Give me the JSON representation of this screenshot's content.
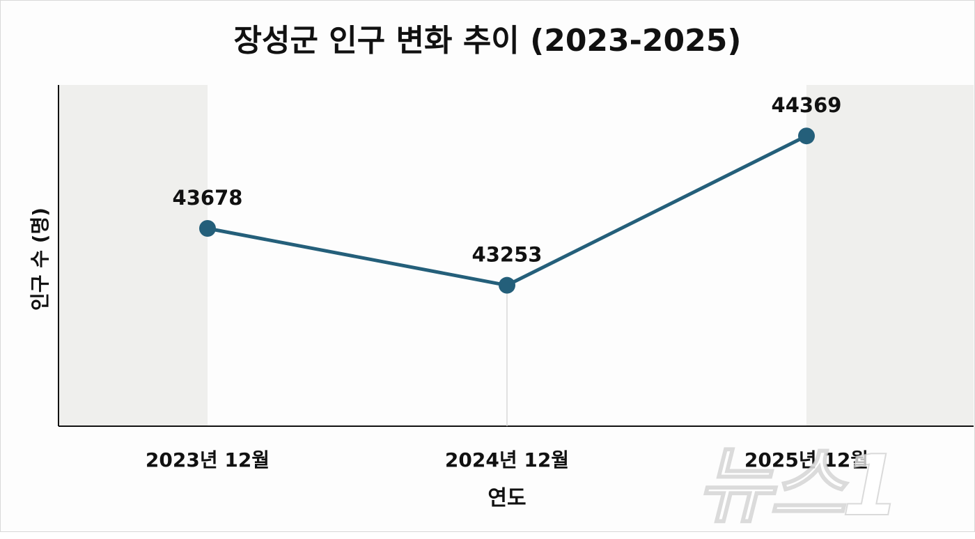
{
  "chart_data": {
    "type": "line",
    "title": "장성군 인구 변화 추이 (2023-2025)",
    "xlabel": "연도",
    "ylabel": "인구 수 (명)",
    "categories": [
      "2023년 12월",
      "2024년 12월",
      "2025년 12월"
    ],
    "series": [
      {
        "values": [
          43678,
          43253,
          44369
        ]
      }
    ],
    "data_labels": [
      "43678",
      "43253",
      "44369"
    ],
    "ylim": [
      42200,
      44750
    ],
    "grid": false,
    "line_color": "#245f7a",
    "shade_color": "#efefed"
  },
  "watermark": "뉴스1"
}
